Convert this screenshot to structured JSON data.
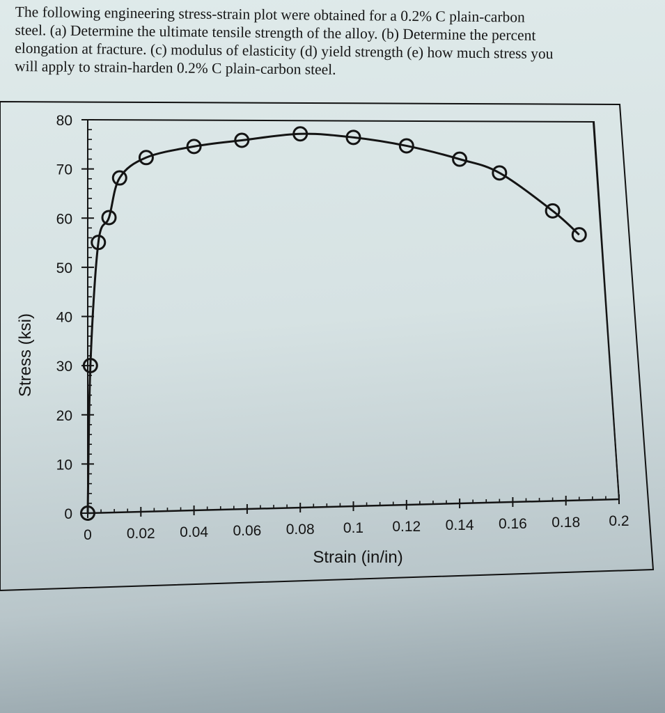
{
  "question": {
    "lines": [
      "The following engineering stress-strain plot were obtained for a 0.2% C plain-carbon",
      "steel. (a) Determine the ultimate tensile strength of the alloy. (b) Determine the percent",
      "elongation at fracture. (c) modulus of elasticity (d) yield strength (e) how much stress you",
      "will apply to strain-harden 0.2% C plain-carbon steel."
    ]
  },
  "chart_data": {
    "type": "line",
    "title": "",
    "xlabel": "Strain (in/in)",
    "ylabel": "Stress (ksi)",
    "xlim": [
      0,
      0.2
    ],
    "ylim": [
      0,
      80
    ],
    "x_ticks": [
      "0",
      "0.02",
      "0.04",
      "0.06",
      "0.08",
      "0.1",
      "0.12",
      "0.14",
      "0.16",
      "0.18",
      "0.2"
    ],
    "y_ticks": [
      "0",
      "10",
      "20",
      "30",
      "40",
      "50",
      "60",
      "70",
      "80"
    ],
    "grid": false,
    "legend": null,
    "marker": "open-circle",
    "series": [
      {
        "name": "0.2% C plain-carbon steel",
        "x": [
          0,
          0.001,
          0.004,
          0.008,
          0.012,
          0.022,
          0.04,
          0.058,
          0.08,
          0.1,
          0.12,
          0.14,
          0.155,
          0.175,
          0.185
        ],
        "y": [
          0,
          30,
          55,
          60,
          68,
          72,
          74,
          75,
          76,
          75,
          73,
          70,
          67,
          59,
          54
        ]
      }
    ]
  },
  "colors": {
    "line": "#141414",
    "paper": "#dfeaea"
  }
}
